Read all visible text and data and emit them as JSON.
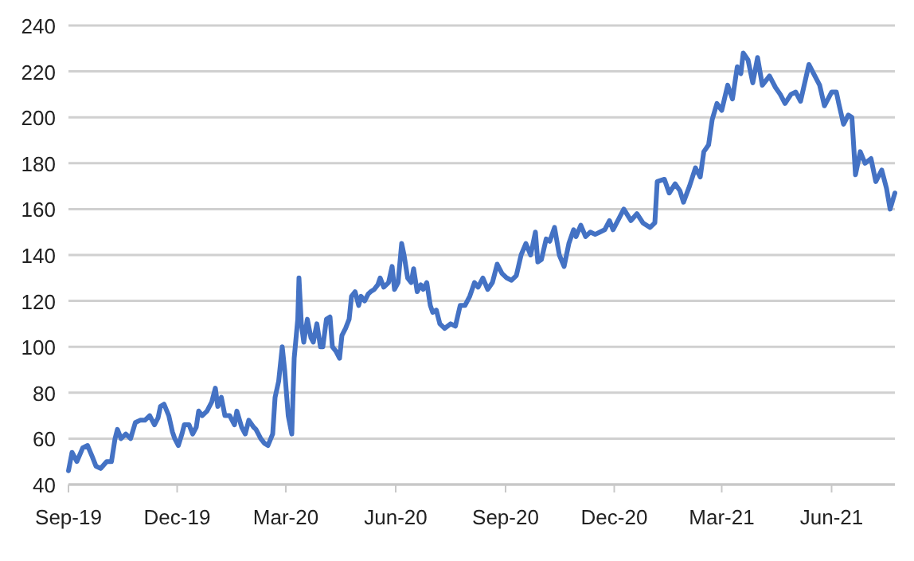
{
  "chart_data": {
    "type": "line",
    "x": [
      "2019-09-01",
      "2019-09-04",
      "2019-09-08",
      "2019-09-13",
      "2019-09-17",
      "2019-09-21",
      "2019-09-24",
      "2019-09-28",
      "2019-10-03",
      "2019-10-07",
      "2019-10-10",
      "2019-10-12",
      "2019-10-15",
      "2019-10-19",
      "2019-10-23",
      "2019-10-27",
      "2019-10-31",
      "2019-11-04",
      "2019-11-08",
      "2019-11-12",
      "2019-11-15",
      "2019-11-17",
      "2019-11-20",
      "2019-11-24",
      "2019-11-27",
      "2019-11-29",
      "2019-12-02",
      "2019-12-05",
      "2019-12-07",
      "2019-12-11",
      "2019-12-14",
      "2019-12-17",
      "2019-12-19",
      "2019-12-22",
      "2019-12-26",
      "2019-12-30",
      "2020-01-02",
      "2020-01-04",
      "2020-01-07",
      "2020-01-10",
      "2020-01-14",
      "2020-01-18",
      "2020-01-20",
      "2020-01-24",
      "2020-01-27",
      "2020-01-30",
      "2020-02-03",
      "2020-02-05",
      "2020-02-09",
      "2020-02-12",
      "2020-02-15",
      "2020-02-19",
      "2020-02-21",
      "2020-02-24",
      "2020-02-27",
      "2020-02-29",
      "2020-03-03",
      "2020-03-06",
      "2020-03-08",
      "2020-03-11",
      "2020-03-12",
      "2020-03-14",
      "2020-03-16",
      "2020-03-19",
      "2020-03-22",
      "2020-03-24",
      "2020-03-27",
      "2020-03-30",
      "2020-04-01",
      "2020-04-04",
      "2020-04-07",
      "2020-04-09",
      "2020-04-12",
      "2020-04-15",
      "2020-04-17",
      "2020-04-20",
      "2020-04-23",
      "2020-04-25",
      "2020-04-28",
      "2020-05-01",
      "2020-05-03",
      "2020-05-06",
      "2020-05-09",
      "2020-05-11",
      "2020-05-14",
      "2020-05-17",
      "2020-05-19",
      "2020-05-22",
      "2020-05-26",
      "2020-05-29",
      "2020-05-31",
      "2020-06-03",
      "2020-06-06",
      "2020-06-08",
      "2020-06-11",
      "2020-06-14",
      "2020-06-16",
      "2020-06-19",
      "2020-06-22",
      "2020-06-24",
      "2020-06-27",
      "2020-06-30",
      "2020-07-02",
      "2020-07-05",
      "2020-07-08",
      "2020-07-12",
      "2020-07-17",
      "2020-07-21",
      "2020-07-25",
      "2020-07-29",
      "2020-08-02",
      "2020-08-06",
      "2020-08-09",
      "2020-08-13",
      "2020-08-17",
      "2020-08-21",
      "2020-08-25",
      "2020-08-29",
      "2020-09-02",
      "2020-09-06",
      "2020-09-10",
      "2020-09-14",
      "2020-09-18",
      "2020-09-22",
      "2020-09-26",
      "2020-09-28",
      "2020-10-01",
      "2020-10-05",
      "2020-10-08",
      "2020-10-12",
      "2020-10-16",
      "2020-10-20",
      "2020-10-24",
      "2020-10-28",
      "2020-10-30",
      "2020-11-03",
      "2020-11-07",
      "2020-11-11",
      "2020-11-15",
      "2020-11-19",
      "2020-11-23",
      "2020-11-27",
      "2020-11-30",
      "2020-12-04",
      "2020-12-09",
      "2020-12-15",
      "2020-12-20",
      "2020-12-25",
      "2020-12-31",
      "2021-01-04",
      "2021-01-06",
      "2021-01-12",
      "2021-01-16",
      "2021-01-21",
      "2021-01-25",
      "2021-01-28",
      "2021-02-02",
      "2021-02-07",
      "2021-02-11",
      "2021-02-14",
      "2021-02-18",
      "2021-02-21",
      "2021-02-25",
      "2021-03-01",
      "2021-03-06",
      "2021-03-10",
      "2021-03-14",
      "2021-03-17",
      "2021-03-19",
      "2021-03-23",
      "2021-03-27",
      "2021-03-31",
      "2021-04-04",
      "2021-04-10",
      "2021-04-15",
      "2021-04-19",
      "2021-04-23",
      "2021-04-28",
      "2021-05-02",
      "2021-05-06",
      "2021-05-13",
      "2021-05-18",
      "2021-05-22",
      "2021-05-26",
      "2021-06-01",
      "2021-06-05",
      "2021-06-07",
      "2021-06-11",
      "2021-06-15",
      "2021-06-18",
      "2021-06-21",
      "2021-06-25",
      "2021-06-29",
      "2021-07-04",
      "2021-07-08",
      "2021-07-13",
      "2021-07-17",
      "2021-07-20",
      "2021-07-24"
    ],
    "series": [
      {
        "color": "#4472c4",
        "values": [
          46,
          54,
          50,
          56,
          57,
          52,
          48,
          47,
          50,
          50,
          60,
          64,
          60,
          62,
          60,
          67,
          68,
          68,
          70,
          66,
          69,
          74,
          75,
          70,
          63,
          60,
          57,
          62,
          66,
          66,
          62,
          65,
          72,
          70,
          72,
          76,
          82,
          74,
          78,
          70,
          70,
          66,
          72,
          65,
          62,
          68,
          65,
          64,
          60,
          58,
          57,
          62,
          78,
          85,
          100,
          90,
          70,
          62,
          95,
          112,
          130,
          110,
          102,
          112,
          104,
          102,
          110,
          100,
          100,
          112,
          113,
          100,
          98,
          95,
          105,
          108,
          112,
          122,
          124,
          118,
          122,
          120,
          123,
          124,
          125,
          127,
          130,
          126,
          128,
          135,
          125,
          128,
          145,
          140,
          130,
          128,
          134,
          124,
          127,
          125,
          128,
          118,
          115,
          116,
          110,
          108,
          110,
          109,
          118,
          118,
          122,
          128,
          126,
          130,
          125,
          128,
          136,
          132,
          130,
          129,
          131,
          140,
          145,
          140,
          150,
          137,
          138,
          147,
          146,
          152,
          140,
          135,
          145,
          151,
          148,
          153,
          148,
          150,
          149,
          150,
          151,
          155,
          151,
          155,
          160,
          155,
          158,
          154,
          152,
          154,
          172,
          173,
          167,
          171,
          168,
          163,
          170,
          178,
          174,
          185,
          188,
          199,
          206,
          203,
          214,
          208,
          222,
          219,
          228,
          225,
          215,
          226,
          214,
          218,
          213,
          210,
          206,
          210,
          211,
          207,
          223,
          218,
          214,
          205,
          211,
          211,
          206,
          197,
          201,
          200,
          175,
          185,
          180,
          182,
          172,
          177,
          169,
          160,
          167
        ]
      }
    ],
    "xlim": [
      "2019-09-01",
      "2021-07-24"
    ],
    "xticks": [
      {
        "value": "2019-09-01",
        "label": "Sep-19"
      },
      {
        "value": "2019-12-01",
        "label": "Dec-19"
      },
      {
        "value": "2020-03-01",
        "label": "Mar-20"
      },
      {
        "value": "2020-06-01",
        "label": "Jun-20"
      },
      {
        "value": "2020-09-01",
        "label": "Sep-20"
      },
      {
        "value": "2020-12-01",
        "label": "Dec-20"
      },
      {
        "value": "2021-03-01",
        "label": "Mar-21"
      },
      {
        "value": "2021-06-01",
        "label": "Jun-21"
      }
    ],
    "ylim": [
      40,
      240
    ],
    "yticks": [
      40,
      60,
      80,
      100,
      120,
      140,
      160,
      180,
      200,
      220,
      240
    ],
    "grid": "y",
    "marker": "none",
    "line_style": "solid"
  }
}
